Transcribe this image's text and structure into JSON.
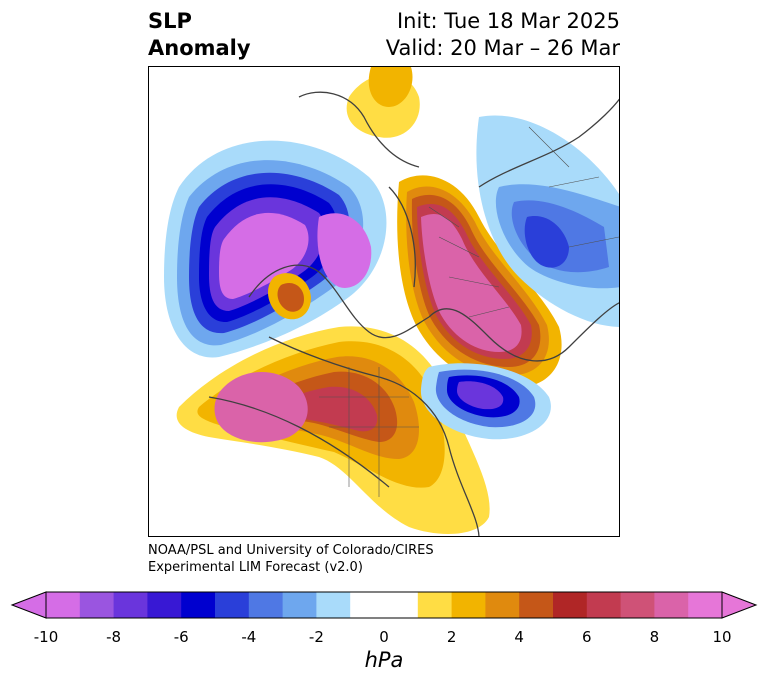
{
  "title": {
    "line1": "SLP",
    "line2": "Anomaly",
    "init": "Init: Tue 18 Mar 2025",
    "valid": "Valid: 20 Mar – 26 Mar"
  },
  "credit": {
    "line1": "NOAA/PSL and University of Colorado/CIRES",
    "line2": "Experimental LIM Forecast (v2.0)"
  },
  "colorbar": {
    "unit": "hPa",
    "ticks": [
      "-10",
      "-8",
      "-6",
      "-4",
      "-2",
      "0",
      "2",
      "4",
      "6",
      "8",
      "10"
    ],
    "colors": [
      "#d56de6",
      "#9a55e0",
      "#6a35dc",
      "#3818d4",
      "#0000cf",
      "#2a3fd9",
      "#4f78e4",
      "#6ea7ee",
      "#a9dbfa",
      "#ffffff",
      "#ffffff",
      "#ffdd44",
      "#f2b400",
      "#e08a0e",
      "#c55718",
      "#b02626",
      "#c23b50",
      "#cf5277",
      "#da63a9",
      "#e676d8"
    ],
    "extend": "both"
  },
  "map": {
    "projection": "north polar stereographic",
    "features": [
      "coastlines",
      "country borders",
      "state/province borders"
    ]
  }
}
